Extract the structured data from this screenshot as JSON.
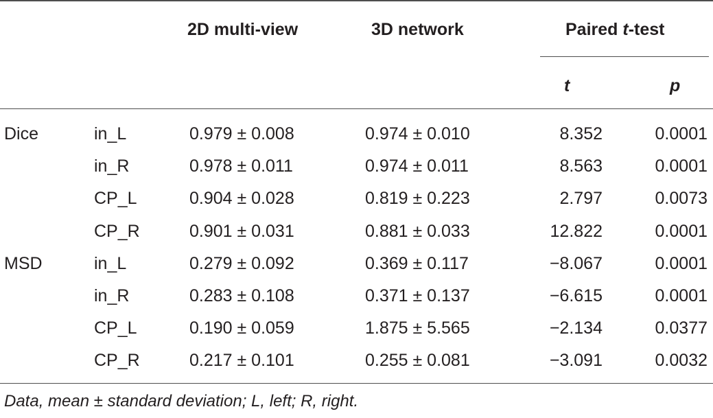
{
  "header": {
    "col_2d": "2D multi-view",
    "col_3d": "3D network",
    "col_ttest_prefix": "Paired ",
    "col_ttest_italic": "t",
    "col_ttest_suffix": "-test",
    "col_t": "t",
    "col_p": "p"
  },
  "rows": [
    {
      "metric": "Dice",
      "region": "in_L",
      "v2d": "0.979 ± 0.008",
      "v3d": "0.974 ± 0.010",
      "t": "8.352",
      "p": "0.0001"
    },
    {
      "metric": "",
      "region": "in_R",
      "v2d": "0.978 ± 0.011",
      "v3d": "0.974 ± 0.011",
      "t": "8.563",
      "p": "0.0001"
    },
    {
      "metric": "",
      "region": "CP_L",
      "v2d": "0.904 ± 0.028",
      "v3d": "0.819 ± 0.223",
      "t": "2.797",
      "p": "0.0073"
    },
    {
      "metric": "",
      "region": "CP_R",
      "v2d": "0.901 ± 0.031",
      "v3d": "0.881 ± 0.033",
      "t": "12.822",
      "p": "0.0001"
    },
    {
      "metric": "MSD",
      "region": "in_L",
      "v2d": "0.279 ± 0.092",
      "v3d": "0.369 ± 0.117",
      "t": "−8.067",
      "p": "0.0001"
    },
    {
      "metric": "",
      "region": "in_R",
      "v2d": "0.283 ± 0.108",
      "v3d": "0.371 ± 0.137",
      "t": "−6.615",
      "p": "0.0001"
    },
    {
      "metric": "",
      "region": "CP_L",
      "v2d": "0.190 ± 0.059",
      "v3d": "1.875 ± 5.565",
      "t": "−2.134",
      "p": "0.0377"
    },
    {
      "metric": "",
      "region": "CP_R",
      "v2d": "0.217 ± 0.101",
      "v3d": "0.255 ± 0.081",
      "t": "−3.091",
      "p": "0.0032"
    }
  ],
  "footnote": "Data, mean ± standard deviation; L, left; R, right."
}
